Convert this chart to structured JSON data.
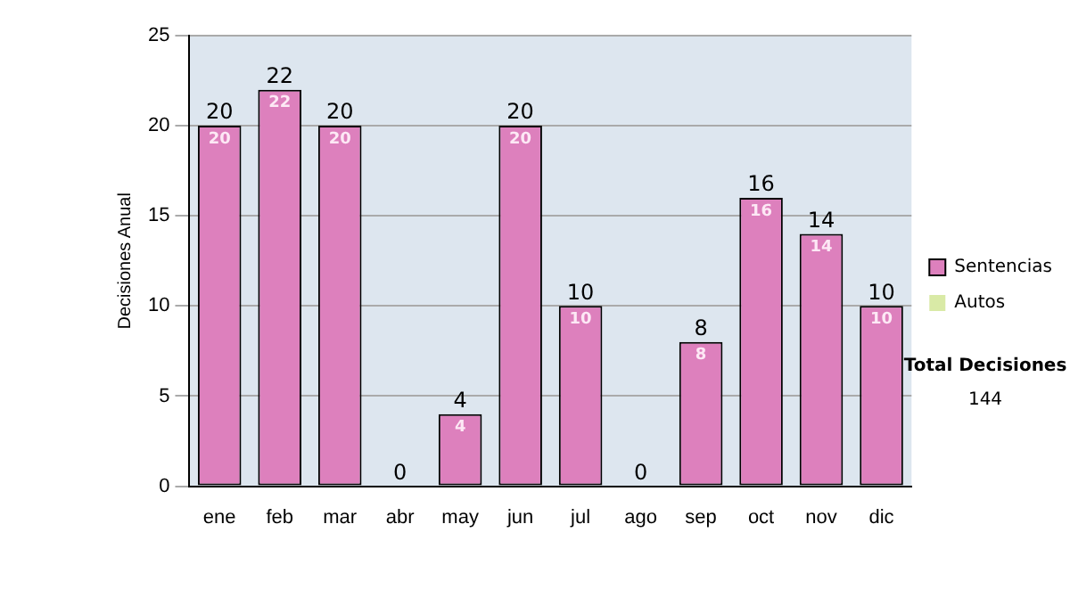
{
  "chart_data": {
    "type": "bar",
    "stacked": true,
    "ylabel": "Decisiones Anual",
    "categories": [
      "ene",
      "feb",
      "mar",
      "abr",
      "may",
      "jun",
      "jul",
      "ago",
      "sep",
      "oct",
      "nov",
      "dic"
    ],
    "series": [
      {
        "name": "Sentencias",
        "color": "#dd80bd",
        "values": [
          20,
          22,
          20,
          0,
          4,
          20,
          10,
          0,
          8,
          16,
          14,
          10
        ],
        "value_labels": [
          "20",
          "22",
          "20",
          null,
          "4",
          "20",
          "10",
          null,
          "8",
          "16",
          "14",
          "10"
        ]
      },
      {
        "name": "Autos",
        "color": "#d9eaa6",
        "values": [
          0,
          0,
          0,
          0,
          0,
          0,
          0,
          0,
          0,
          0,
          0,
          0
        ]
      }
    ],
    "totals": [
      "20",
      "22",
      "20",
      "0",
      "4",
      "20",
      "10",
      "0",
      "8",
      "16",
      "14",
      "10"
    ],
    "ylim": [
      0,
      25
    ],
    "yticks": [
      0,
      5,
      10,
      15,
      20,
      25
    ],
    "grid": "y",
    "legend": "right",
    "annotations": [
      "Total Decisiones",
      "144"
    ]
  }
}
